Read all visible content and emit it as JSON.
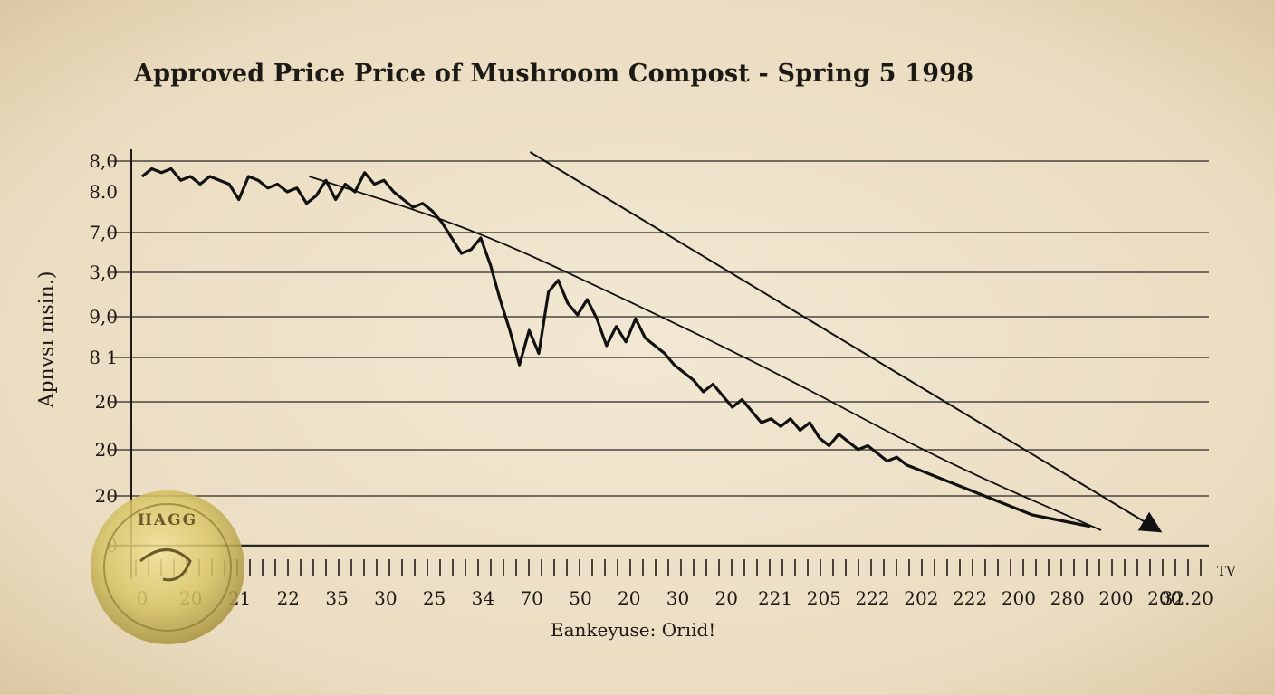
{
  "chart_data": {
    "type": "line",
    "title": "Approved Price Price  of Mushroom Compost - Spring 5 1998",
    "ylabel": "Apnvsı msin.)",
    "xlabel": "Eankeyuse: Orıid!",
    "corner_label": "TV",
    "seal_text": "HAGG",
    "y_tick_labels": [
      "8,0",
      "8.0",
      "7,0",
      "3,0",
      "9,0",
      "8 1",
      "20",
      "20",
      "20",
      "0"
    ],
    "x_tick_labels": [
      "0",
      "20",
      "21",
      "22",
      "35",
      "30",
      "25",
      "34",
      "70",
      "50",
      "20",
      "30",
      "20",
      "221",
      "205",
      "222",
      "202",
      "222",
      "200",
      "280",
      "200",
      "200",
      "32.20"
    ],
    "grid": "horizontal",
    "series": [
      {
        "values": [
          9.6,
          9.8,
          9.7,
          9.8,
          9.5,
          9.6,
          9.4,
          9.6,
          9.5,
          9.4,
          9.0,
          9.6,
          9.5,
          9.3,
          9.4,
          9.2,
          9.3,
          8.9,
          9.1,
          9.5,
          9.0,
          9.4,
          9.2,
          9.7,
          9.4,
          9.5,
          9.2,
          9.0,
          8.8,
          8.9,
          8.7,
          8.4,
          8.0,
          7.6,
          7.7,
          8.0,
          7.3,
          6.4,
          5.6,
          4.7,
          5.6,
          5.0,
          6.6,
          6.9,
          6.3,
          6.0,
          6.4,
          5.9,
          5.2,
          5.7,
          5.3,
          5.9,
          5.4,
          5.2,
          5.0,
          4.7,
          4.5,
          4.3,
          4.0,
          4.2,
          3.9,
          3.6,
          3.8,
          3.5,
          3.2,
          3.3,
          3.1,
          3.3,
          3.0,
          3.2,
          2.8,
          2.6,
          2.9,
          2.7,
          2.5,
          2.6,
          2.4,
          2.2,
          2.3,
          2.1,
          2.0,
          1.9,
          1.8,
          1.7,
          1.6,
          1.5,
          1.4,
          1.3,
          1.2,
          1.1,
          1.0,
          0.9,
          0.8,
          0.75,
          0.7,
          0.65,
          0.6,
          0.55,
          0.5
        ],
        "color": "#111111"
      }
    ],
    "trend_curve": {
      "x": [
        0,
        0.2,
        0.4,
        0.6,
        0.8,
        1.0
      ],
      "y": [
        9.6,
        8.3,
        6.4,
        4.4,
        2.2,
        0.4
      ]
    },
    "trend_arrow": {
      "start": [
        0.37,
        10.0
      ],
      "end": [
        1.05,
        0.3
      ]
    },
    "ylim": [
      0,
      10
    ],
    "xlim": [
      0,
      1
    ]
  }
}
